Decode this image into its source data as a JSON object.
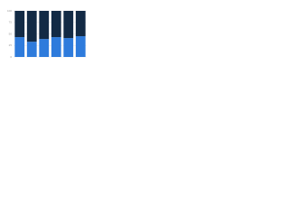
{
  "chart_data": {
    "type": "stacked_bar",
    "categories": [
      null,
      null,
      null,
      null,
      null,
      null
    ],
    "series": [
      {
        "color": "#2e7bdc",
        "values": [
          43,
          33,
          39,
          43,
          41,
          45
        ]
      },
      {
        "color": "#122a45",
        "values": [
          57,
          67,
          61,
          57,
          59,
          55
        ]
      }
    ],
    "ylim": [
      0,
      100
    ],
    "yticks": [
      0,
      25,
      50,
      75,
      100
    ],
    "grid": true
  }
}
